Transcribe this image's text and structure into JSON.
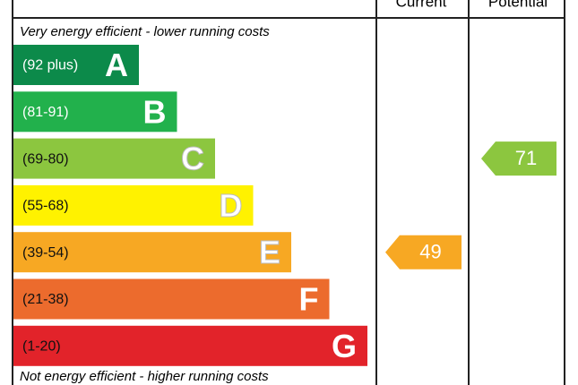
{
  "header": {
    "current": "Current",
    "potential": "Potential"
  },
  "top_note": "Very energy efficient - lower running costs",
  "bottom_note": "Not energy efficient - higher running costs",
  "bands": [
    {
      "range": "(92 plus)",
      "letter": "A",
      "color": "#0c8a4a"
    },
    {
      "range": "(81-91)",
      "letter": "B",
      "color": "#22b14c"
    },
    {
      "range": "(69-80)",
      "letter": "C",
      "color": "#8cc63f"
    },
    {
      "range": "(55-68)",
      "letter": "D",
      "color": "#fff200"
    },
    {
      "range": "(39-54)",
      "letter": "E",
      "color": "#f7a823"
    },
    {
      "range": "(21-38)",
      "letter": "F",
      "color": "#ec6b2d"
    },
    {
      "range": "(1-20)",
      "letter": "G",
      "color": "#e2232a"
    }
  ],
  "current": {
    "value": 49,
    "color": "#f7a823"
  },
  "potential": {
    "value": 71,
    "color": "#8cc63f"
  }
}
